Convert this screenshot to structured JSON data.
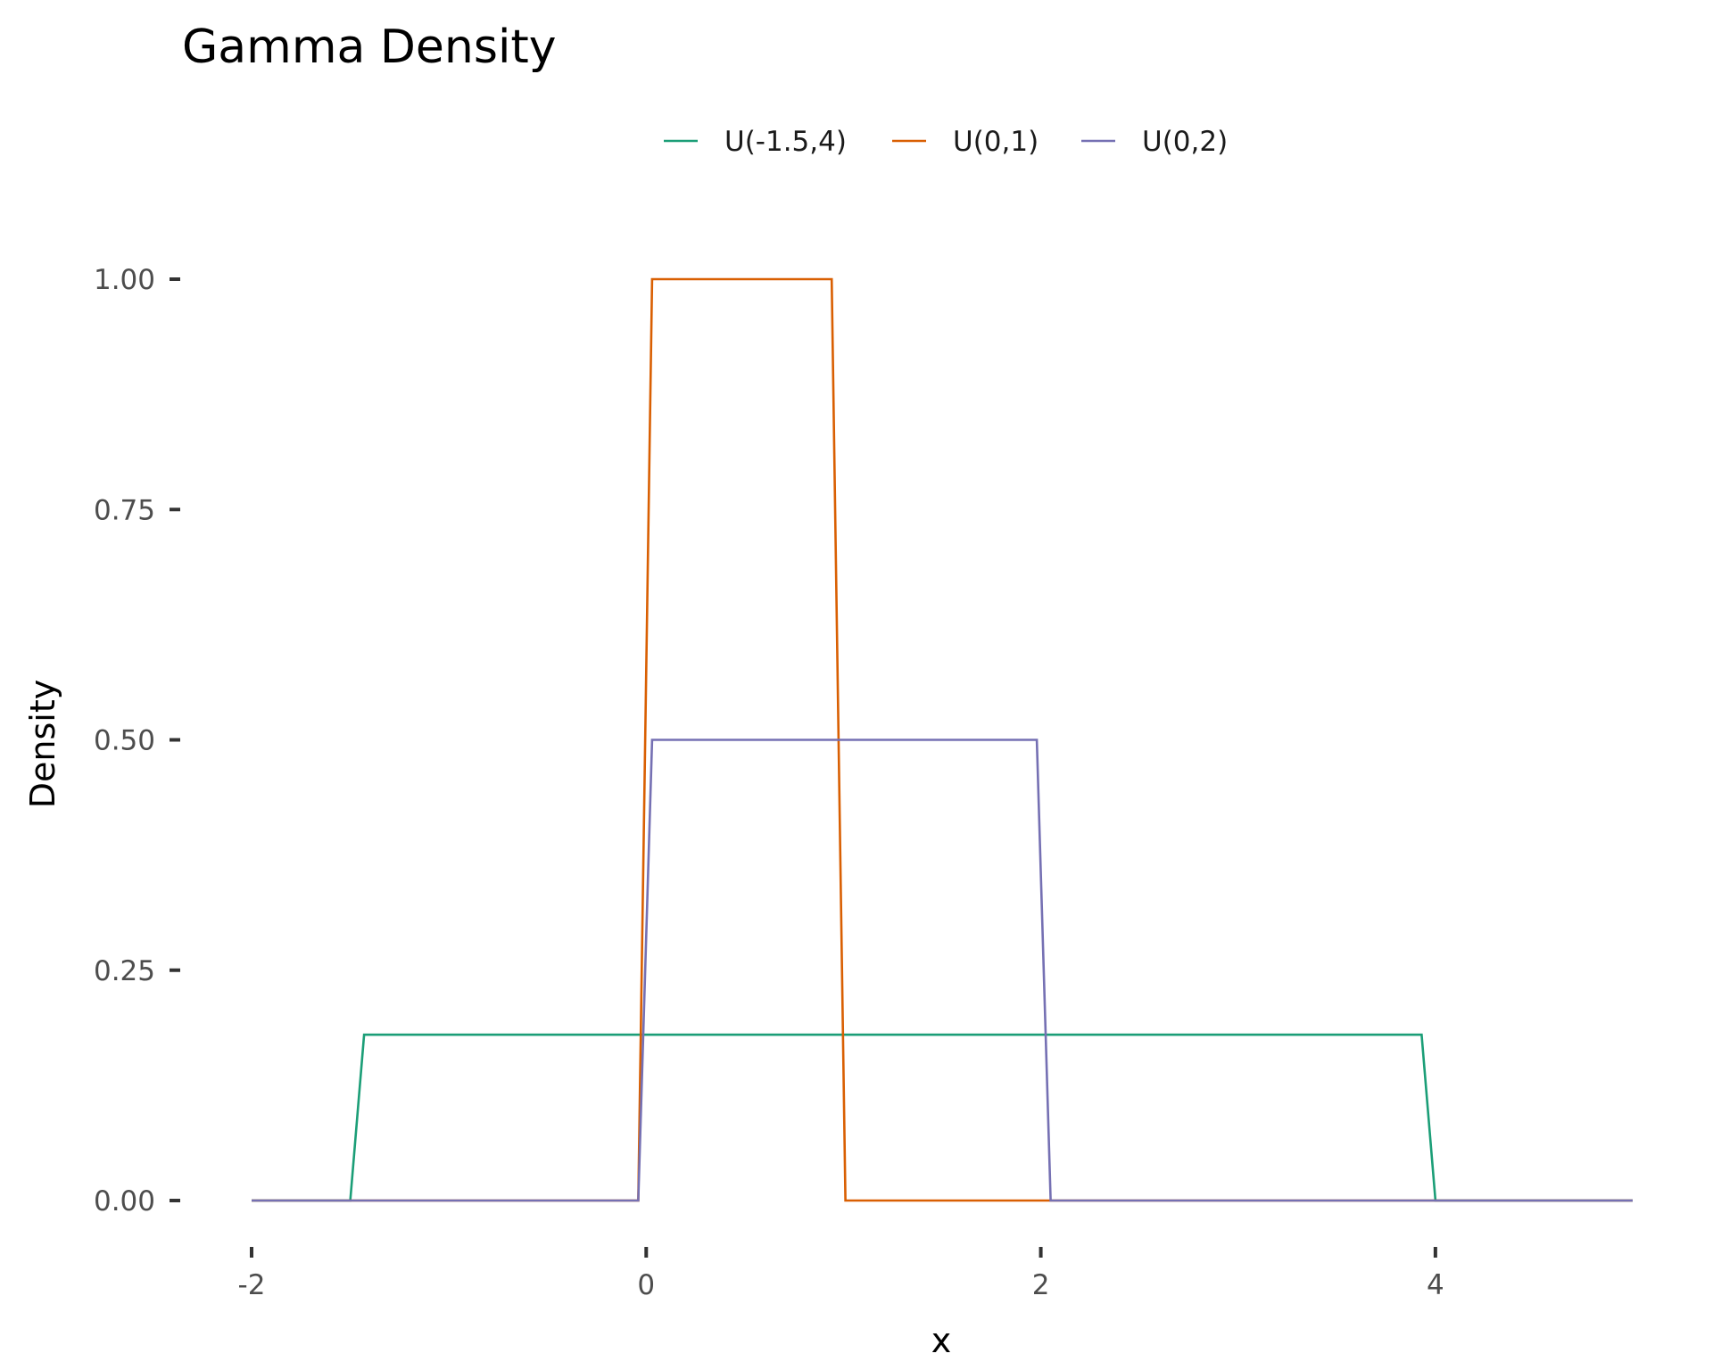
{
  "chart_data": {
    "type": "line",
    "title": "Gamma Density",
    "xlabel": "x",
    "ylabel": "Density",
    "xlim": [
      -2,
      5
    ],
    "ylim": [
      0,
      1
    ],
    "x_ticks": [
      -2,
      0,
      2,
      4
    ],
    "x_tick_labels": [
      "-2",
      "0",
      "2",
      "4"
    ],
    "y_ticks": [
      0,
      0.25,
      0.5,
      0.75,
      1
    ],
    "y_tick_labels": [
      "0.00",
      "0.25",
      "0.50",
      "0.75",
      "1.00"
    ],
    "grid": false,
    "legend_position": "top",
    "series": [
      {
        "name": "U(-1.5,4)",
        "color": "#1b9e77",
        "x": [
          -2,
          -1.5,
          -1.43,
          3.93,
          4.0,
          5
        ],
        "y": [
          0,
          0,
          0.18,
          0.18,
          0,
          0
        ]
      },
      {
        "name": "U(0,1)",
        "color": "#d95f02",
        "x": [
          -2,
          -0.04,
          0.03,
          0.94,
          1.01,
          5
        ],
        "y": [
          0,
          0,
          1.0,
          1.0,
          0,
          0
        ]
      },
      {
        "name": "U(0,2)",
        "color": "#7570b3",
        "x": [
          -2,
          -0.04,
          0.03,
          1.98,
          2.05,
          5
        ],
        "y": [
          0,
          0,
          0.5,
          0.5,
          0,
          0
        ]
      }
    ]
  }
}
